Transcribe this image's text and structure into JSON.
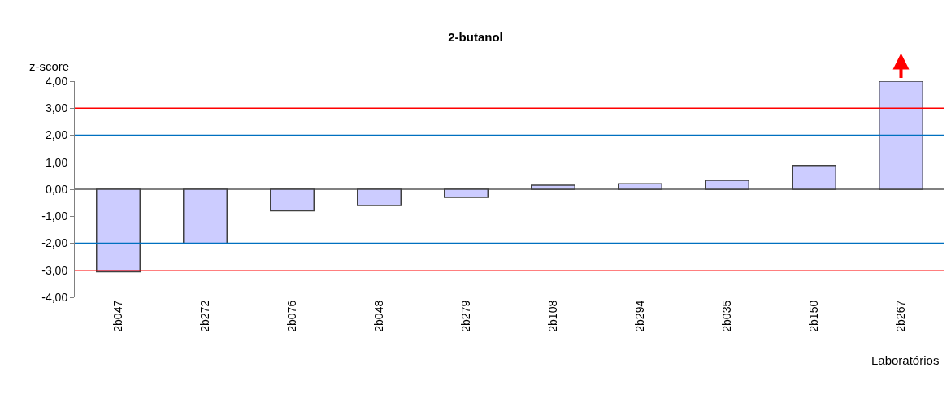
{
  "chart_data": {
    "type": "bar",
    "title": "2-butanol",
    "ylabel": "z-score",
    "xlabel": "Laboratórios",
    "categories": [
      "2b047",
      "2b272",
      "2b076",
      "2b048",
      "2b279",
      "2b108",
      "2b294",
      "2b035",
      "2b150",
      "2b267"
    ],
    "values": [
      -3.05,
      -2.02,
      -0.8,
      -0.6,
      -0.3,
      0.15,
      0.2,
      0.33,
      0.88,
      4.0
    ],
    "color": "#ccccff",
    "ylim": [
      -4,
      4
    ],
    "yticks": [
      {
        "value": -4,
        "label": "-4,00"
      },
      {
        "value": -3,
        "label": "-3,00"
      },
      {
        "value": -2,
        "label": "-2,00"
      },
      {
        "value": -1,
        "label": "-1,00"
      },
      {
        "value": 0,
        "label": "0,00"
      },
      {
        "value": 1,
        "label": "1,00"
      },
      {
        "value": 2,
        "label": "2,00"
      },
      {
        "value": 3,
        "label": "3,00"
      },
      {
        "value": 4,
        "label": "4,00"
      }
    ],
    "ref_lines": [
      {
        "axis": "y",
        "value": 3,
        "color": "#ff0000"
      },
      {
        "axis": "y",
        "value": 2,
        "color": "#0070c0"
      },
      {
        "axis": "y",
        "value": -2,
        "color": "#0070c0"
      },
      {
        "axis": "y",
        "value": -3,
        "color": "#ff0000"
      }
    ]
  }
}
